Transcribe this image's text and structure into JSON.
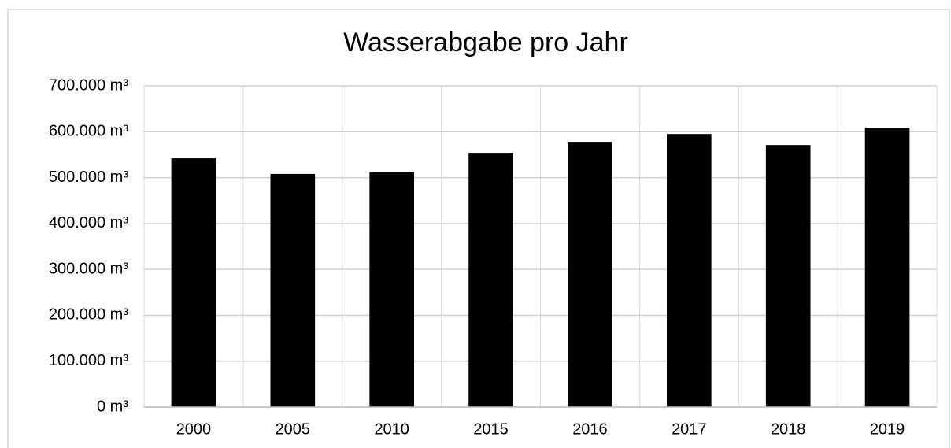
{
  "chart_data": {
    "type": "bar",
    "title": "Wasserabgabe pro Jahr",
    "categories": [
      "2000",
      "2005",
      "2010",
      "2015",
      "2016",
      "2017",
      "2018",
      "2019"
    ],
    "values": [
      542000,
      508000,
      513000,
      554000,
      578000,
      595000,
      571000,
      609000
    ],
    "color": "#000000",
    "ylim": [
      0,
      700000
    ],
    "yticks": [
      {
        "value": 0,
        "label": "0 m³"
      },
      {
        "value": 100000,
        "label": "100.000 m³"
      },
      {
        "value": 200000,
        "label": "200.000 m³"
      },
      {
        "value": 300000,
        "label": "300.000 m³"
      },
      {
        "value": 400000,
        "label": "400.000 m³"
      },
      {
        "value": 500000,
        "label": "500.000 m³"
      },
      {
        "value": 600000,
        "label": "600.000 m³"
      },
      {
        "value": 700000,
        "label": "700.000 m³"
      }
    ],
    "grid": true
  }
}
